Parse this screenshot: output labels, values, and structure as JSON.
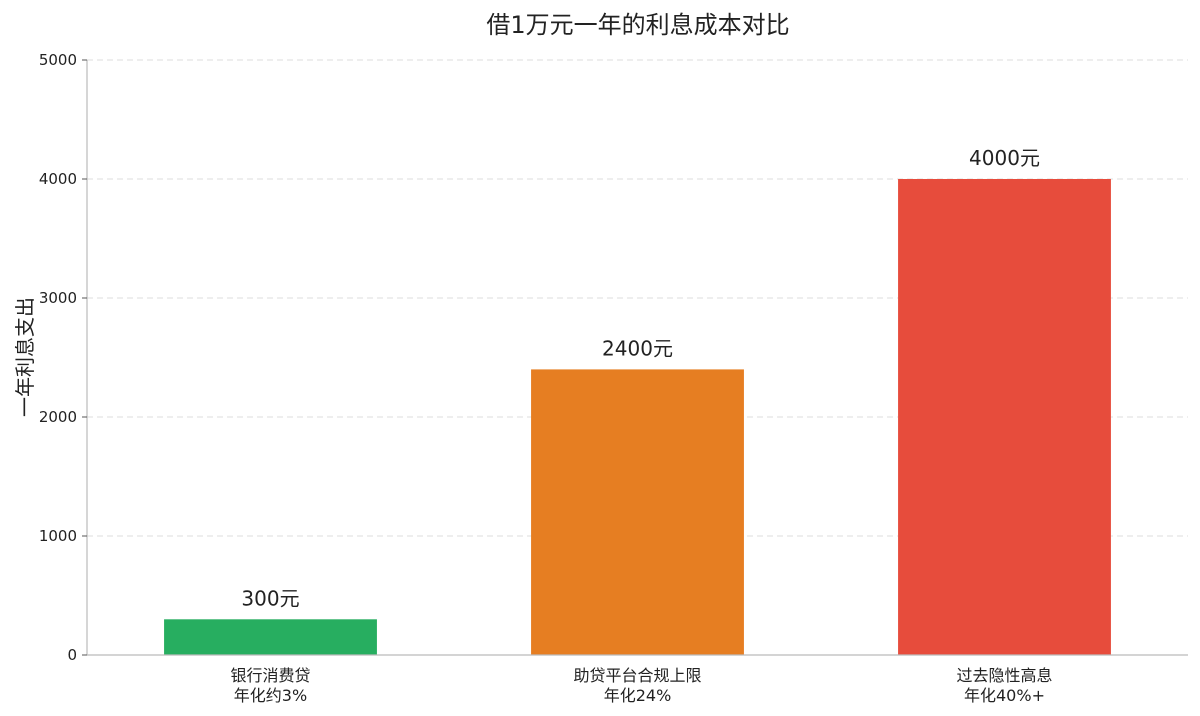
{
  "chart_data": {
    "type": "bar",
    "title": "借1万元一年的利息成本对比",
    "xlabel": "",
    "ylabel": "一年利息支出",
    "ylim": [
      0,
      5000
    ],
    "yticks": [
      0,
      1000,
      2000,
      3000,
      4000,
      5000
    ],
    "grid": "horizontal, dashed",
    "categories": [
      {
        "line1": "银行消费贷",
        "line2": "年化约3%"
      },
      {
        "line1": "助贷平台合规上限",
        "line2": "年化24%"
      },
      {
        "line1": "过去隐性高息",
        "line2": "年化40%+"
      }
    ],
    "values": [
      300,
      2400,
      4000
    ],
    "value_labels": [
      "300元",
      "2400元",
      "4000元"
    ],
    "colors": [
      "#27ae60",
      "#e67e22",
      "#e74c3c"
    ]
  }
}
